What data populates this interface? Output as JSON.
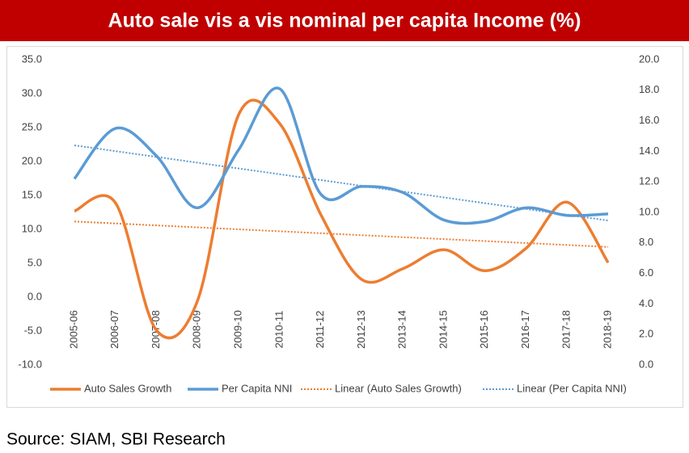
{
  "chart_data": {
    "type": "line",
    "title": "Auto sale vis a vis nominal per capita Income (%)",
    "source": "Source: SIAM, SBI Research",
    "categories": [
      "2005-06",
      "2006-07",
      "2007-08",
      "2008-09",
      "2009-10",
      "2010-11",
      "2011-12",
      "2012-13",
      "2013-14",
      "2014-15",
      "2015-16",
      "2016-17",
      "2017-18",
      "2018-19"
    ],
    "series": [
      {
        "name": "Auto Sales Growth",
        "color": "#ed7d31",
        "values": [
          12.7,
          13.9,
          -4.9,
          -0.5,
          26.9,
          25.6,
          12.2,
          2.6,
          4.2,
          7.0,
          3.9,
          7.2,
          14.0,
          5.1
        ]
      },
      {
        "name": "Per Capita NNI",
        "color": "#5b9bd5",
        "axis": "y2",
        "values": [
          12.2,
          15.5,
          13.7,
          10.3,
          14.1,
          18.1,
          11.2,
          11.7,
          11.3,
          9.5,
          9.4,
          10.3,
          9.8,
          9.9
        ]
      },
      {
        "name": "Linear (Auto Sales Growth)",
        "color": "#ed7d31",
        "trendline_of": 0
      },
      {
        "name": "Linear (Per Capita NNI)",
        "color": "#5b9bd5",
        "trendline_of": 1
      }
    ],
    "ylim": [
      -10,
      35
    ],
    "yticks": [
      {
        "value": -10,
        "label": "-10.0"
      },
      {
        "value": -5,
        "label": "-5.0"
      },
      {
        "value": 0,
        "label": "0.0"
      },
      {
        "value": 5,
        "label": "5.0"
      },
      {
        "value": 10,
        "label": "10.0"
      },
      {
        "value": 15,
        "label": "15.0"
      },
      {
        "value": 20,
        "label": "20.0"
      },
      {
        "value": 25,
        "label": "25.0"
      },
      {
        "value": 30,
        "label": "30.0"
      },
      {
        "value": 35,
        "label": "35.0"
      }
    ],
    "y2lim": [
      0,
      20
    ],
    "y2ticks": [
      {
        "value": 0,
        "label": "0.0"
      },
      {
        "value": 2,
        "label": "2.0"
      },
      {
        "value": 4,
        "label": "4.0"
      },
      {
        "value": 6,
        "label": "6.0"
      },
      {
        "value": 8,
        "label": "8.0"
      },
      {
        "value": 10,
        "label": "10.0"
      },
      {
        "value": 12,
        "label": "12.0"
      },
      {
        "value": 14,
        "label": "14.0"
      },
      {
        "value": 16,
        "label": "16.0"
      },
      {
        "value": 18,
        "label": "18.0"
      },
      {
        "value": 20,
        "label": "20.0"
      }
    ],
    "grid": false,
    "legend": "bottom"
  }
}
